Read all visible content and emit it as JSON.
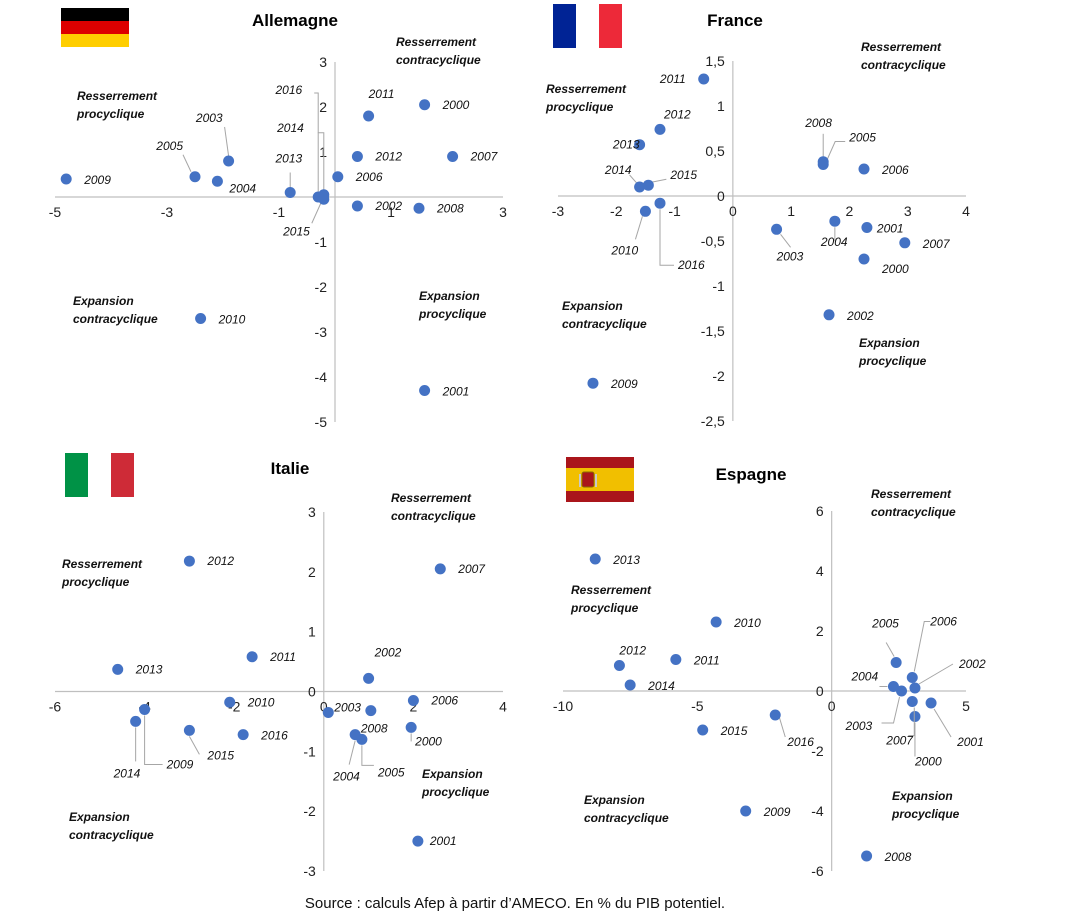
{
  "source": "Source : calculs Afep à partir d’AMECO. En % du PIB potentiel.",
  "colors": {
    "point": "#4472C4",
    "axis": "#BFBFBF",
    "leader": "#A6A6A6"
  },
  "chart_data": [
    {
      "type": "scatter",
      "title": "Allemagne",
      "flag": "germany-flag",
      "xlim": [
        -5,
        3
      ],
      "ylim": [
        -5,
        3
      ],
      "xticks": [
        "-5",
        "-3",
        "-1",
        "1",
        "3"
      ],
      "xtick_values": [
        -5,
        -3,
        -1,
        1,
        3
      ],
      "yticks": [
        "3",
        "2",
        "1",
        "0",
        "-1",
        "-2",
        "-3",
        "-4",
        "-5"
      ],
      "ytick_values": [
        3,
        2,
        1,
        0,
        -1,
        -2,
        -3,
        -4,
        -5
      ],
      "quadrant_labels": {
        "top_right": [
          "Resserrement",
          "contracyclique"
        ],
        "top_left": [
          "Resserrement",
          "procyclique"
        ],
        "bottom_left": [
          "Expansion",
          "contracyclique"
        ],
        "bottom_right": [
          "Expansion",
          "procyclique"
        ]
      },
      "points": [
        {
          "label": "2000",
          "x": 1.6,
          "y": 2.05
        },
        {
          "label": "2001",
          "x": 1.6,
          "y": -4.3
        },
        {
          "label": "2002",
          "x": 0.4,
          "y": -0.2
        },
        {
          "label": "2003",
          "x": -1.9,
          "y": 0.8
        },
        {
          "label": "2004",
          "x": -2.1,
          "y": 0.35
        },
        {
          "label": "2005",
          "x": -2.5,
          "y": 0.45
        },
        {
          "label": "2006",
          "x": 0.05,
          "y": 0.45
        },
        {
          "label": "2007",
          "x": 2.1,
          "y": 0.9
        },
        {
          "label": "2008",
          "x": 1.5,
          "y": -0.25
        },
        {
          "label": "2009",
          "x": -4.8,
          "y": 0.4
        },
        {
          "label": "2010",
          "x": -2.4,
          "y": -2.7
        },
        {
          "label": "2011",
          "x": 0.6,
          "y": 1.8
        },
        {
          "label": "2012",
          "x": 0.4,
          "y": 0.9
        },
        {
          "label": "2013",
          "x": -0.8,
          "y": 0.1
        },
        {
          "label": "2014",
          "x": -0.2,
          "y": 0.05
        },
        {
          "label": "2015",
          "x": -0.2,
          "y": -0.05
        },
        {
          "label": "2016",
          "x": -0.3,
          "y": 0.0
        }
      ]
    },
    {
      "type": "scatter",
      "title": "France",
      "flag": "france-flag",
      "xlim": [
        -3,
        4
      ],
      "ylim": [
        -2.5,
        1.5
      ],
      "xticks": [
        "-3",
        "-2",
        "-1",
        "0",
        "1",
        "2",
        "3",
        "4"
      ],
      "xtick_values": [
        -3,
        -2,
        -1,
        0,
        1,
        2,
        3,
        4
      ],
      "yticks": [
        "1,5",
        "1",
        "0,5",
        "0",
        "-0,5",
        "-1",
        "-1,5",
        "-2",
        "-2,5"
      ],
      "ytick_values": [
        1.5,
        1,
        0.5,
        0,
        -0.5,
        -1,
        -1.5,
        -2,
        -2.5
      ],
      "quadrant_labels": {
        "top_right": [
          "Resserrement",
          "contracyclique"
        ],
        "top_left": [
          "Resserrement",
          "procyclique"
        ],
        "bottom_left": [
          "Expansion",
          "contracyclique"
        ],
        "bottom_right": [
          "Expansion",
          "procyclique"
        ]
      },
      "points": [
        {
          "label": "2000",
          "x": 2.25,
          "y": -0.7
        },
        {
          "label": "2001",
          "x": 2.3,
          "y": -0.35
        },
        {
          "label": "2002",
          "x": 1.65,
          "y": -1.32
        },
        {
          "label": "2003",
          "x": 0.75,
          "y": -0.37
        },
        {
          "label": "2004",
          "x": 1.75,
          "y": -0.28
        },
        {
          "label": "2005",
          "x": 1.55,
          "y": 0.35
        },
        {
          "label": "2006",
          "x": 2.25,
          "y": 0.3
        },
        {
          "label": "2007",
          "x": 2.95,
          "y": -0.52
        },
        {
          "label": "2008",
          "x": 1.55,
          "y": 0.38
        },
        {
          "label": "2009",
          "x": -2.4,
          "y": -2.08
        },
        {
          "label": "2010",
          "x": -1.5,
          "y": -0.17
        },
        {
          "label": "2011",
          "x": -0.5,
          "y": 1.3
        },
        {
          "label": "2012",
          "x": -1.25,
          "y": 0.74
        },
        {
          "label": "2013",
          "x": -1.6,
          "y": 0.57
        },
        {
          "label": "2014",
          "x": -1.6,
          "y": 0.1
        },
        {
          "label": "2015",
          "x": -1.45,
          "y": 0.12
        },
        {
          "label": "2016",
          "x": -1.25,
          "y": -0.08
        }
      ]
    },
    {
      "type": "scatter",
      "title": "Italie",
      "flag": "italy-flag",
      "xlim": [
        -6,
        4
      ],
      "ylim": [
        -3,
        3
      ],
      "xticks": [
        "-6",
        "-4",
        "-2",
        "0",
        "2",
        "4"
      ],
      "xtick_values": [
        -6,
        -4,
        -2,
        0,
        2,
        4
      ],
      "yticks": [
        "3",
        "2",
        "1",
        "0",
        "-1",
        "-2",
        "-3"
      ],
      "ytick_values": [
        3,
        2,
        1,
        0,
        -1,
        -2,
        -3
      ],
      "quadrant_labels": {
        "top_right": [
          "Resserrement",
          "contracyclique"
        ],
        "top_left": [
          "Resserrement",
          "procyclique"
        ],
        "bottom_left": [
          "Expansion",
          "contracyclique"
        ],
        "bottom_right": [
          "Expansion",
          "procyclique"
        ]
      },
      "points": [
        {
          "label": "2000",
          "x": 1.95,
          "y": -0.6
        },
        {
          "label": "2001",
          "x": 2.1,
          "y": -2.5
        },
        {
          "label": "2002",
          "x": 1.0,
          "y": 0.22
        },
        {
          "label": "2003",
          "x": 0.1,
          "y": -0.35
        },
        {
          "label": "2004",
          "x": 0.7,
          "y": -0.72
        },
        {
          "label": "2005",
          "x": 0.85,
          "y": -0.8
        },
        {
          "label": "2006",
          "x": 2.0,
          "y": -0.15
        },
        {
          "label": "2007",
          "x": 2.6,
          "y": 2.05
        },
        {
          "label": "2008",
          "x": 1.05,
          "y": -0.32
        },
        {
          "label": "2009",
          "x": -4.0,
          "y": -0.3
        },
        {
          "label": "2010",
          "x": -2.1,
          "y": -0.18
        },
        {
          "label": "2011",
          "x": -1.6,
          "y": 0.58
        },
        {
          "label": "2012",
          "x": -3.0,
          "y": 2.18
        },
        {
          "label": "2013",
          "x": -4.6,
          "y": 0.37
        },
        {
          "label": "2014",
          "x": -4.2,
          "y": -0.5
        },
        {
          "label": "2015",
          "x": -3.0,
          "y": -0.65
        },
        {
          "label": "2016",
          "x": -1.8,
          "y": -0.72
        }
      ]
    },
    {
      "type": "scatter",
      "title": "Espagne",
      "flag": "spain-flag",
      "xlim": [
        -10,
        5
      ],
      "ylim": [
        -6,
        6
      ],
      "xticks": [
        "-10",
        "-5",
        "0",
        "5"
      ],
      "xtick_values": [
        -10,
        -5,
        0,
        5
      ],
      "yticks": [
        "6",
        "4",
        "2",
        "0",
        "-2",
        "-4",
        "-6"
      ],
      "ytick_values": [
        6,
        4,
        2,
        0,
        -2,
        -4,
        -6
      ],
      "quadrant_labels": {
        "top_right": [
          "Resserrement",
          "contracyclique"
        ],
        "top_left": [
          "Resserrement",
          "procyclique"
        ],
        "bottom_left": [
          "Expansion",
          "contracyclique"
        ],
        "bottom_right": [
          "Expansion",
          "procyclique"
        ]
      },
      "points": [
        {
          "label": "2000",
          "x": 3.1,
          "y": -0.85
        },
        {
          "label": "2001",
          "x": 3.7,
          "y": -0.4
        },
        {
          "label": "2002",
          "x": 3.1,
          "y": 0.1
        },
        {
          "label": "2003",
          "x": 2.6,
          "y": 0.0
        },
        {
          "label": "2004",
          "x": 2.3,
          "y": 0.15
        },
        {
          "label": "2005",
          "x": 2.4,
          "y": 0.95
        },
        {
          "label": "2006",
          "x": 3.0,
          "y": 0.45
        },
        {
          "label": "2007",
          "x": 3.0,
          "y": -0.35
        },
        {
          "label": "2008",
          "x": 1.3,
          "y": -5.5
        },
        {
          "label": "2009",
          "x": -3.2,
          "y": -4.0
        },
        {
          "label": "2010",
          "x": -4.3,
          "y": 2.3
        },
        {
          "label": "2011",
          "x": -5.8,
          "y": 1.05
        },
        {
          "label": "2012",
          "x": -7.9,
          "y": 0.85
        },
        {
          "label": "2013",
          "x": -8.8,
          "y": 4.4
        },
        {
          "label": "2014",
          "x": -7.5,
          "y": 0.2
        },
        {
          "label": "2015",
          "x": -4.8,
          "y": -1.3
        },
        {
          "label": "2016",
          "x": -2.1,
          "y": -0.8
        }
      ]
    }
  ]
}
